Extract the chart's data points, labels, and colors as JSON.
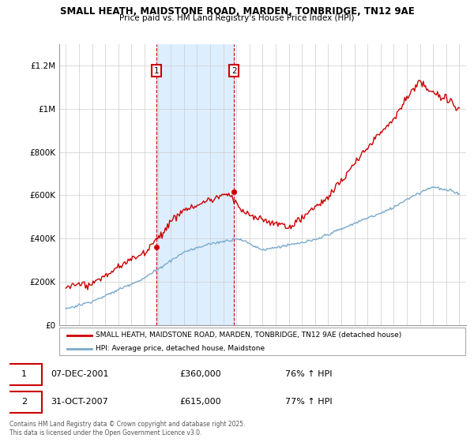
{
  "title": "SMALL HEATH, MAIDSTONE ROAD, MARDEN, TONBRIDGE, TN12 9AE",
  "subtitle": "Price paid vs. HM Land Registry's House Price Index (HPI)",
  "legend_line1": "SMALL HEATH, MAIDSTONE ROAD, MARDEN, TONBRIDGE, TN12 9AE (detached house)",
  "legend_line2": "HPI: Average price, detached house, Maidstone",
  "footer": "Contains HM Land Registry data © Crown copyright and database right 2025.\nThis data is licensed under the Open Government Licence v3.0.",
  "annotation1_date": "07-DEC-2001",
  "annotation1_price": "£360,000",
  "annotation1_hpi": "76% ↑ HPI",
  "annotation2_date": "31-OCT-2007",
  "annotation2_price": "£615,000",
  "annotation2_hpi": "77% ↑ HPI",
  "sale1_x": 2001.93,
  "sale1_y": 360000,
  "sale2_x": 2007.83,
  "sale2_y": 615000,
  "shade1_x_start": 2001.93,
  "shade1_x_end": 2007.83,
  "red_line_color": "#cc0000",
  "blue_line_color": "#7aaacc",
  "shade_color": "#ddeeff",
  "annotation_box_color": "#cc0000",
  "ylim_min": 0,
  "ylim_max": 1300000,
  "xlim_min": 1994.5,
  "xlim_max": 2025.5,
  "yticks": [
    0,
    200000,
    400000,
    600000,
    800000,
    1000000,
    1200000
  ],
  "ytick_labels": [
    "£0",
    "£200K",
    "£400K",
    "£600K",
    "£800K",
    "£1M",
    "£1.2M"
  ],
  "xticks": [
    1995,
    1996,
    1997,
    1998,
    1999,
    2000,
    2001,
    2002,
    2003,
    2004,
    2005,
    2006,
    2007,
    2008,
    2009,
    2010,
    2011,
    2012,
    2013,
    2014,
    2015,
    2016,
    2017,
    2018,
    2019,
    2020,
    2021,
    2022,
    2023,
    2024,
    2025
  ]
}
